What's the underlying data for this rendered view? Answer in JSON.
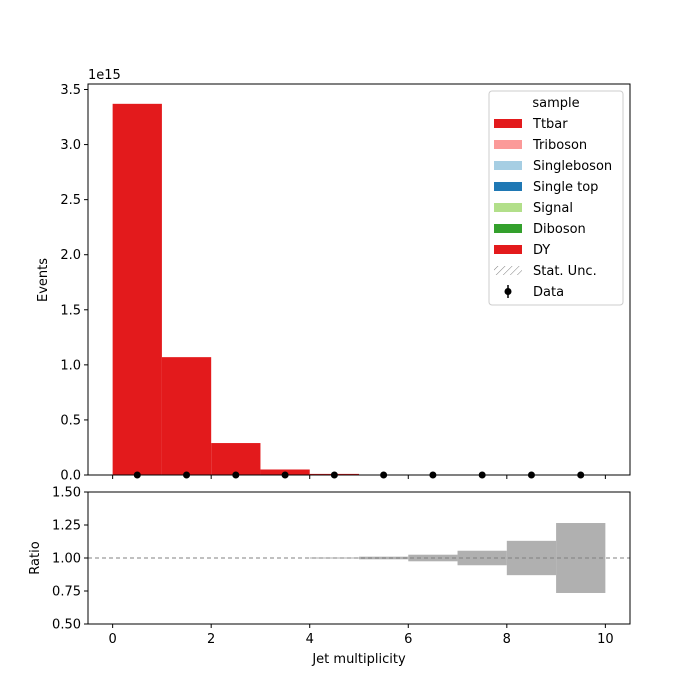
{
  "chart_data": [
    {
      "type": "bar",
      "stacked": true,
      "bin_edges": [
        0,
        1,
        2,
        3,
        4,
        5,
        6,
        7,
        8,
        9,
        10
      ],
      "ylabel": "Events",
      "y_offset_text": "1e15",
      "ylim": [
        0,
        3.55
      ],
      "xlim": [
        -0.5,
        10.5
      ],
      "y_ticks": [
        "0.0",
        "0.5",
        "1.0",
        "1.5",
        "2.0",
        "2.5",
        "3.0",
        "3.5"
      ],
      "legend": {
        "title": "sample",
        "placement": "top-right",
        "entries": [
          {
            "name": "Ttbar",
            "color": "#e31a1c",
            "kind": "patch"
          },
          {
            "name": "Triboson",
            "color": "#fb9a99",
            "kind": "patch"
          },
          {
            "name": "Singleboson",
            "color": "#a6cee3",
            "kind": "patch"
          },
          {
            "name": "Single top",
            "color": "#1f78b4",
            "kind": "patch"
          },
          {
            "name": "Signal",
            "color": "#b2df8a",
            "kind": "patch"
          },
          {
            "name": "Diboson",
            "color": "#33a02c",
            "kind": "patch"
          },
          {
            "name": "DY",
            "color": "#e31a1c",
            "kind": "patch"
          },
          {
            "name": "Stat. Unc.",
            "color": "#808080",
            "kind": "hatch"
          },
          {
            "name": "Data",
            "color": "#000000",
            "kind": "errorbar"
          }
        ]
      },
      "series": [
        {
          "name": "DY",
          "color": "#e31a1c",
          "values": [
            3.37,
            1.07,
            0.29,
            0.05,
            0.01,
            0.004,
            0.001,
            0.0005,
            0.0002,
            0.0001
          ]
        }
      ],
      "data_points": {
        "name": "Data",
        "x": [
          0.5,
          1.5,
          2.5,
          3.5,
          4.5,
          5.5,
          6.5,
          7.5,
          8.5,
          9.5
        ],
        "y": [
          0,
          0,
          0,
          0,
          0,
          0,
          0,
          0,
          0,
          0
        ]
      }
    },
    {
      "type": "bar",
      "role": "ratio",
      "xlabel": "Jet multiplicity",
      "ylabel": "Ratio",
      "ylim": [
        0.5,
        1.5
      ],
      "y_ticks": [
        "0.50",
        "0.75",
        "1.00",
        "1.25",
        "1.50"
      ],
      "x_ticks": [
        "0",
        "2",
        "4",
        "6",
        "8",
        "10"
      ],
      "reference_line": 1.0,
      "uncertainty_band": {
        "color": "#b0b0b0",
        "bin_edges": [
          4,
          5,
          6,
          7,
          8,
          9,
          10
        ],
        "half_width": [
          0.004,
          0.01,
          0.025,
          0.055,
          0.13,
          0.265
        ]
      }
    }
  ]
}
